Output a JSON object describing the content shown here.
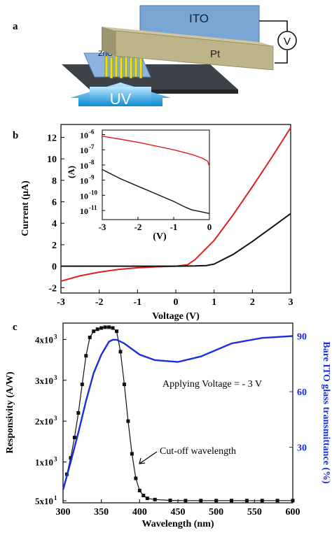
{
  "panel_a": {
    "label": "a",
    "ito_label": "ITO",
    "pt_label": "Pt",
    "zno_label": "ZnO",
    "uv_label": "UV",
    "meter_label": "V",
    "colors": {
      "ito": "#7aa6d6",
      "pt": "#bdb48a",
      "rods": "#e6df22",
      "uv": "#1f9fdc"
    }
  },
  "chart_data": [
    {
      "id": "b",
      "type": "line",
      "panel_label": "b",
      "xlabel": "Voltage (V)",
      "ylabel": "Current (μA)",
      "xlim": [
        -3,
        3
      ],
      "ylim": [
        -2.5,
        13.2
      ],
      "xticks": [
        -3,
        -2,
        -1,
        0,
        1,
        2,
        3
      ],
      "yticks": [
        -2,
        0,
        2,
        4,
        6,
        8,
        10,
        12
      ],
      "series": [
        {
          "color": "#e02020",
          "x": [
            -3,
            -2.5,
            -2,
            -1.5,
            -1,
            -0.5,
            0,
            0.3,
            0.5,
            1,
            1.5,
            2,
            2.5,
            3
          ],
          "y": [
            -1.4,
            -0.9,
            -0.55,
            -0.3,
            -0.15,
            -0.06,
            0,
            0.12,
            0.6,
            2.4,
            4.8,
            7.4,
            10.1,
            12.9
          ]
        },
        {
          "color": "#111111",
          "x": [
            -3,
            -2,
            -1,
            0,
            0.5,
            0.8,
            1,
            1.5,
            2,
            2.5,
            3
          ],
          "y": [
            0,
            0,
            0,
            0,
            0.02,
            0.06,
            0.2,
            1.1,
            2.3,
            3.6,
            4.9
          ]
        }
      ],
      "inset": {
        "xlabel": "(V)",
        "ylabel": "(A)",
        "xlim": [
          -3,
          0
        ],
        "ylim_log10": [
          -11.6,
          -5.7
        ],
        "xticks": [
          -3,
          -2,
          -1,
          0
        ],
        "ytick_labels": [
          "10-6",
          "10-7",
          "10-8",
          "10-9",
          "10-10",
          "10-11"
        ],
        "ytick_exponents": [
          -6,
          -7,
          -8,
          -9,
          -10,
          -11
        ],
        "series": [
          {
            "color": "#e02020",
            "x": [
              -3,
              -2.5,
              -2,
              -1.5,
              -1,
              -0.5,
              -0.2,
              -0.05,
              0
            ],
            "log10_y": [
              -6.1,
              -6.3,
              -6.5,
              -6.75,
              -7.0,
              -7.3,
              -7.55,
              -7.75,
              -8.1
            ]
          },
          {
            "color": "#111111",
            "x": [
              -3,
              -2.5,
              -2,
              -1.5,
              -1,
              -0.7,
              -0.5,
              -0.3,
              -0.1,
              0
            ],
            "log10_y": [
              -8.3,
              -8.9,
              -9.4,
              -9.9,
              -10.4,
              -10.75,
              -10.95,
              -11.05,
              -11.15,
              -11.2
            ]
          }
        ]
      }
    },
    {
      "id": "c",
      "type": "line",
      "panel_label": "c",
      "xlabel": "Wavelength (nm)",
      "ylabel": "Responsivity (A/W)",
      "y2label": "Bare ITO glass transmittance (%)",
      "xlim": [
        300,
        600
      ],
      "ylim": [
        0,
        4400
      ],
      "y2lim": [
        0,
        97
      ],
      "xticks": [
        300,
        350,
        400,
        450,
        500,
        550,
        600
      ],
      "yticks": [
        50,
        1000,
        2000,
        3000,
        4000
      ],
      "ytick_labels": [
        "5x10",
        "1x10",
        "2x10",
        "3x10",
        "4x10"
      ],
      "ytick_superscripts": [
        "1",
        "3",
        "3",
        "3",
        "3"
      ],
      "y2ticks": [
        30,
        60,
        90
      ],
      "annotations": [
        "Applying Voltage = - 3 V",
        "Cut-off wavelength"
      ],
      "series": [
        {
          "color": "#111111",
          "markers": "square",
          "x": [
            305,
            310,
            315,
            320,
            325,
            330,
            335,
            340,
            345,
            350,
            355,
            360,
            365,
            370,
            375,
            380,
            385,
            390,
            395,
            400,
            405,
            410,
            420,
            440,
            460,
            480,
            500,
            520,
            540,
            560,
            580,
            600
          ],
          "y": [
            700,
            1100,
            1600,
            2200,
            2900,
            3600,
            4050,
            4200,
            4250,
            4280,
            4300,
            4300,
            4280,
            4200,
            3700,
            2900,
            2000,
            1200,
            600,
            300,
            180,
            110,
            80,
            60,
            55,
            55,
            55,
            55,
            55,
            55,
            55,
            55
          ]
        },
        {
          "color": "#1a2ee0",
          "axis": "y2",
          "x": [
            300,
            310,
            320,
            330,
            340,
            350,
            360,
            365,
            370,
            380,
            390,
            400,
            420,
            450,
            480,
            520,
            560,
            600
          ],
          "y": [
            7,
            22,
            38,
            55,
            70,
            80,
            87,
            88,
            88,
            86,
            83,
            80,
            77,
            76,
            79,
            86,
            89,
            90
          ]
        }
      ]
    }
  ]
}
